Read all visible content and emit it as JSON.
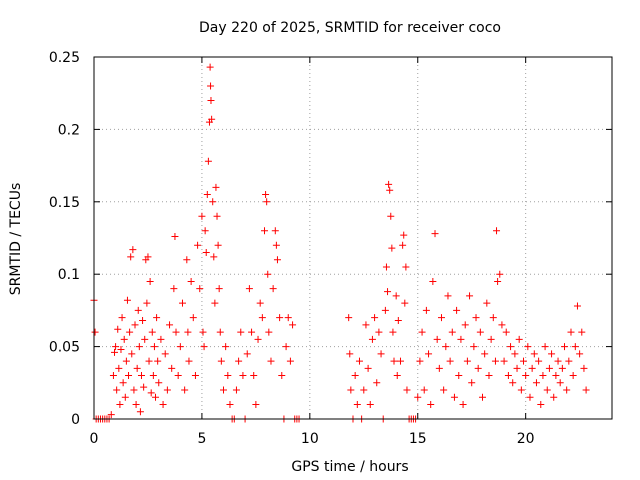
{
  "chart_data": {
    "type": "scatter",
    "title": "Day 220 of 2025, SRMTID for receiver coco",
    "xlabel": "GPS time / hours",
    "ylabel": "SRMTID / TECUs",
    "xlim": [
      0,
      24
    ],
    "ylim": [
      0,
      0.25
    ],
    "xticks": [
      0,
      5,
      10,
      15,
      20
    ],
    "xtick_labels": [
      "0",
      "5",
      "10",
      "15",
      "20"
    ],
    "yticks": [
      0,
      0.05,
      0.1,
      0.15,
      0.2,
      0.25
    ],
    "ytick_labels": [
      "0",
      "0.05",
      "0.1",
      "0.15",
      "0.2",
      "0.25"
    ],
    "grid": true,
    "marker": "+",
    "color": "#ff0000",
    "series": [
      {
        "name": "SRMTID",
        "points": [
          [
            0.0,
            0.082
          ],
          [
            0.05,
            0.06
          ],
          [
            0.1,
            0
          ],
          [
            0.2,
            0
          ],
          [
            0.3,
            0
          ],
          [
            0.4,
            0
          ],
          [
            0.5,
            0
          ],
          [
            0.6,
            0
          ],
          [
            0.7,
            0
          ],
          [
            0.8,
            0.003
          ],
          [
            0.9,
            0.03
          ],
          [
            0.95,
            0.046
          ],
          [
            1.0,
            0.05
          ],
          [
            1.05,
            0.02
          ],
          [
            1.1,
            0.062
          ],
          [
            1.15,
            0.035
          ],
          [
            1.2,
            0.01
          ],
          [
            1.25,
            0.048
          ],
          [
            1.3,
            0.07
          ],
          [
            1.35,
            0.025
          ],
          [
            1.4,
            0.055
          ],
          [
            1.45,
            0.015
          ],
          [
            1.5,
            0.04
          ],
          [
            1.55,
            0.082
          ],
          [
            1.6,
            0.03
          ],
          [
            1.65,
            0.06
          ],
          [
            1.7,
            0.112
          ],
          [
            1.75,
            0.045
          ],
          [
            1.8,
            0.117
          ],
          [
            1.85,
            0.02
          ],
          [
            1.9,
            0.065
          ],
          [
            1.95,
            0.01
          ],
          [
            2.0,
            0.035
          ],
          [
            2.05,
            0.075
          ],
          [
            2.1,
            0.05
          ],
          [
            2.15,
            0.005
          ],
          [
            2.2,
            0.03
          ],
          [
            2.25,
            0.068
          ],
          [
            2.3,
            0.022
          ],
          [
            2.35,
            0.055
          ],
          [
            2.4,
            0.11
          ],
          [
            2.45,
            0.08
          ],
          [
            2.5,
            0.112
          ],
          [
            2.55,
            0.04
          ],
          [
            2.6,
            0.095
          ],
          [
            2.65,
            0.018
          ],
          [
            2.7,
            0.06
          ],
          [
            2.75,
            0.03
          ],
          [
            2.8,
            0.05
          ],
          [
            2.85,
            0.015
          ],
          [
            2.9,
            0.07
          ],
          [
            2.95,
            0.04
          ],
          [
            3.0,
            0.025
          ],
          [
            3.1,
            0.055
          ],
          [
            3.2,
            0.01
          ],
          [
            3.3,
            0.045
          ],
          [
            3.4,
            0.02
          ],
          [
            3.5,
            0.065
          ],
          [
            3.6,
            0.035
          ],
          [
            3.7,
            0.09
          ],
          [
            3.75,
            0.126
          ],
          [
            3.8,
            0.06
          ],
          [
            3.9,
            0.03
          ],
          [
            4.0,
            0.05
          ],
          [
            4.1,
            0.08
          ],
          [
            4.2,
            0.02
          ],
          [
            4.3,
            0.11
          ],
          [
            4.35,
            0.06
          ],
          [
            4.4,
            0.04
          ],
          [
            4.5,
            0.095
          ],
          [
            4.6,
            0.07
          ],
          [
            4.7,
            0.03
          ],
          [
            4.8,
            0.12
          ],
          [
            4.9,
            0.09
          ],
          [
            5.0,
            0.14
          ],
          [
            5.05,
            0.06
          ],
          [
            5.1,
            0.05
          ],
          [
            5.15,
            0.13
          ],
          [
            5.2,
            0.115
          ],
          [
            5.25,
            0.155
          ],
          [
            5.3,
            0.178
          ],
          [
            5.35,
            0.205
          ],
          [
            5.38,
            0.243
          ],
          [
            5.4,
            0.23
          ],
          [
            5.42,
            0.22
          ],
          [
            5.45,
            0.207
          ],
          [
            5.5,
            0.15
          ],
          [
            5.55,
            0.112
          ],
          [
            5.6,
            0.08
          ],
          [
            5.65,
            0.16
          ],
          [
            5.7,
            0.14
          ],
          [
            5.75,
            0.12
          ],
          [
            5.8,
            0.09
          ],
          [
            5.85,
            0.06
          ],
          [
            5.9,
            0.04
          ],
          [
            6.0,
            0.02
          ],
          [
            6.1,
            0.05
          ],
          [
            6.2,
            0.03
          ],
          [
            6.3,
            0.01
          ],
          [
            6.4,
            0.0
          ],
          [
            6.5,
            0.0
          ],
          [
            6.6,
            0.02
          ],
          [
            6.7,
            0.04
          ],
          [
            6.8,
            0.06
          ],
          [
            6.9,
            0.03
          ],
          [
            7.0,
            0.0
          ],
          [
            7.1,
            0.045
          ],
          [
            7.2,
            0.09
          ],
          [
            7.3,
            0.06
          ],
          [
            7.4,
            0.03
          ],
          [
            7.5,
            0.01
          ],
          [
            7.6,
            0.055
          ],
          [
            7.7,
            0.08
          ],
          [
            7.8,
            0.07
          ],
          [
            7.9,
            0.13
          ],
          [
            7.95,
            0.155
          ],
          [
            8.0,
            0.15
          ],
          [
            8.05,
            0.1
          ],
          [
            8.1,
            0.06
          ],
          [
            8.2,
            0.04
          ],
          [
            8.3,
            0.09
          ],
          [
            8.4,
            0.13
          ],
          [
            8.45,
            0.12
          ],
          [
            8.5,
            0.11
          ],
          [
            8.6,
            0.07
          ],
          [
            8.7,
            0.03
          ],
          [
            8.8,
            0.0
          ],
          [
            8.9,
            0.05
          ],
          [
            9.0,
            0.07
          ],
          [
            9.1,
            0.04
          ],
          [
            9.2,
            0.065
          ],
          [
            9.3,
            0.0
          ],
          [
            9.4,
            0.0
          ],
          [
            9.5,
            0.0
          ],
          [
            11.8,
            0.07
          ],
          [
            11.85,
            0.045
          ],
          [
            11.9,
            0.02
          ],
          [
            12.0,
            0.0
          ],
          [
            12.1,
            0.03
          ],
          [
            12.2,
            0.01
          ],
          [
            12.3,
            0.04
          ],
          [
            12.4,
            0.0
          ],
          [
            12.5,
            0.02
          ],
          [
            12.6,
            0.065
          ],
          [
            12.7,
            0.035
          ],
          [
            12.8,
            0.01
          ],
          [
            12.9,
            0.055
          ],
          [
            13.0,
            0.07
          ],
          [
            13.1,
            0.025
          ],
          [
            13.2,
            0.06
          ],
          [
            13.3,
            0.045
          ],
          [
            13.4,
            0.0
          ],
          [
            13.5,
            0.075
          ],
          [
            13.55,
            0.105
          ],
          [
            13.6,
            0.088
          ],
          [
            13.65,
            0.162
          ],
          [
            13.7,
            0.158
          ],
          [
            13.75,
            0.14
          ],
          [
            13.8,
            0.118
          ],
          [
            13.85,
            0.06
          ],
          [
            13.9,
            0.04
          ],
          [
            14.0,
            0.085
          ],
          [
            14.05,
            0.03
          ],
          [
            14.1,
            0.068
          ],
          [
            14.2,
            0.04
          ],
          [
            14.3,
            0.12
          ],
          [
            14.35,
            0.127
          ],
          [
            14.4,
            0.08
          ],
          [
            14.45,
            0.105
          ],
          [
            14.5,
            0.02
          ],
          [
            14.6,
            0.0
          ],
          [
            14.7,
            0.0
          ],
          [
            14.8,
            0.0
          ],
          [
            14.9,
            0.0
          ],
          [
            15.0,
            0.015
          ],
          [
            15.1,
            0.04
          ],
          [
            15.2,
            0.06
          ],
          [
            15.3,
            0.02
          ],
          [
            15.4,
            0.075
          ],
          [
            15.5,
            0.045
          ],
          [
            15.6,
            0.01
          ],
          [
            15.7,
            0.095
          ],
          [
            15.8,
            0.128
          ],
          [
            15.9,
            0.055
          ],
          [
            16.0,
            0.035
          ],
          [
            16.1,
            0.07
          ],
          [
            16.2,
            0.02
          ],
          [
            16.3,
            0.05
          ],
          [
            16.4,
            0.085
          ],
          [
            16.5,
            0.04
          ],
          [
            16.6,
            0.06
          ],
          [
            16.7,
            0.015
          ],
          [
            16.8,
            0.075
          ],
          [
            16.9,
            0.03
          ],
          [
            17.0,
            0.055
          ],
          [
            17.1,
            0.01
          ],
          [
            17.2,
            0.065
          ],
          [
            17.3,
            0.04
          ],
          [
            17.4,
            0.085
          ],
          [
            17.5,
            0.025
          ],
          [
            17.6,
            0.05
          ],
          [
            17.7,
            0.07
          ],
          [
            17.8,
            0.035
          ],
          [
            17.9,
            0.06
          ],
          [
            18.0,
            0.015
          ],
          [
            18.1,
            0.045
          ],
          [
            18.2,
            0.08
          ],
          [
            18.3,
            0.03
          ],
          [
            18.4,
            0.055
          ],
          [
            18.5,
            0.07
          ],
          [
            18.6,
            0.04
          ],
          [
            18.65,
            0.13
          ],
          [
            18.7,
            0.095
          ],
          [
            18.8,
            0.1
          ],
          [
            18.9,
            0.065
          ],
          [
            19.0,
            0.04
          ],
          [
            19.1,
            0.06
          ],
          [
            19.2,
            0.03
          ],
          [
            19.3,
            0.05
          ],
          [
            19.4,
            0.025
          ],
          [
            19.5,
            0.045
          ],
          [
            19.6,
            0.035
          ],
          [
            19.7,
            0.055
          ],
          [
            19.8,
            0.02
          ],
          [
            19.9,
            0.04
          ],
          [
            20.0,
            0.03
          ],
          [
            20.1,
            0.05
          ],
          [
            20.2,
            0.015
          ],
          [
            20.3,
            0.035
          ],
          [
            20.4,
            0.045
          ],
          [
            20.5,
            0.025
          ],
          [
            20.6,
            0.04
          ],
          [
            20.7,
            0.01
          ],
          [
            20.8,
            0.03
          ],
          [
            20.9,
            0.05
          ],
          [
            21.0,
            0.02
          ],
          [
            21.1,
            0.035
          ],
          [
            21.2,
            0.045
          ],
          [
            21.3,
            0.015
          ],
          [
            21.4,
            0.03
          ],
          [
            21.5,
            0.04
          ],
          [
            21.6,
            0.025
          ],
          [
            21.7,
            0.035
          ],
          [
            21.8,
            0.05
          ],
          [
            21.9,
            0.02
          ],
          [
            22.0,
            0.04
          ],
          [
            22.1,
            0.06
          ],
          [
            22.2,
            0.03
          ],
          [
            22.3,
            0.05
          ],
          [
            22.4,
            0.078
          ],
          [
            22.5,
            0.045
          ],
          [
            22.6,
            0.06
          ],
          [
            22.7,
            0.035
          ],
          [
            22.8,
            0.02
          ]
        ]
      }
    ]
  }
}
